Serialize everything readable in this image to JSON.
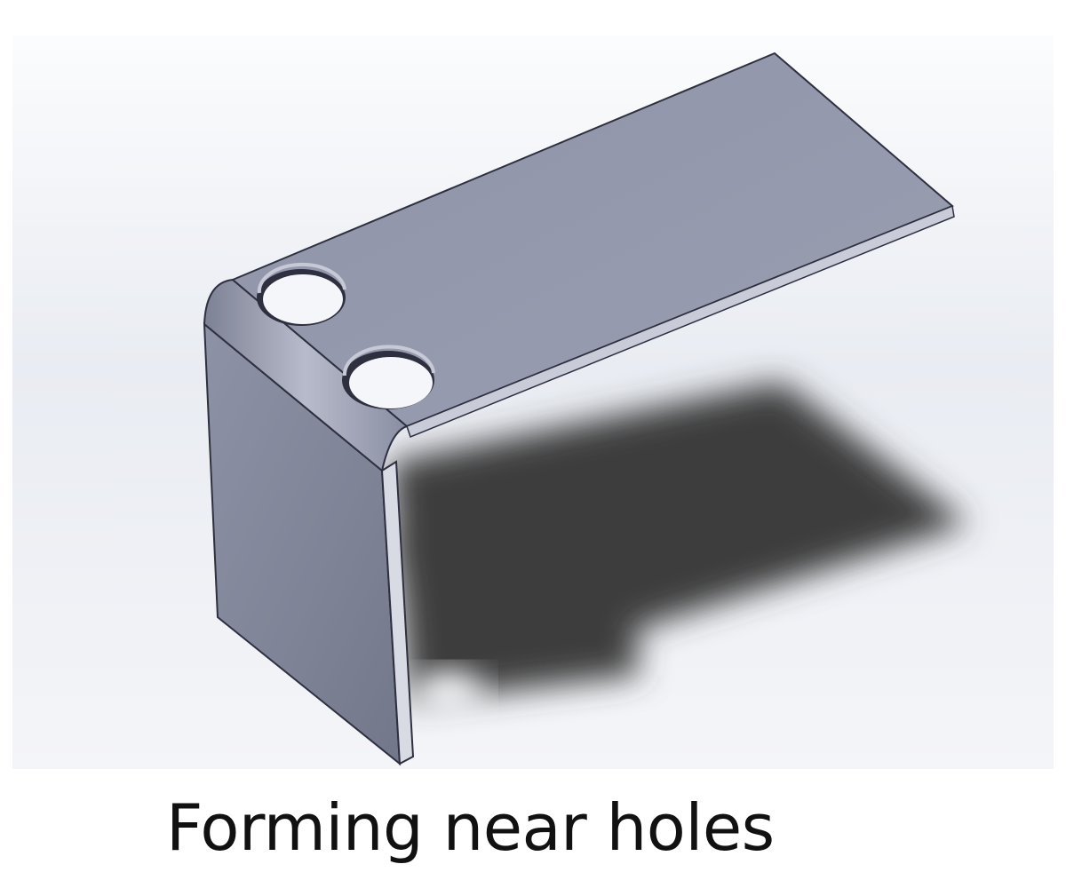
{
  "caption": "Forming near holes",
  "model": {
    "part": "sheet-metal-l-bracket",
    "hole_count": 2,
    "colors": {
      "part_top": "#9498ab",
      "part_side": "#7c8093",
      "edge": "#2e3040",
      "viewport_bg": "#eef0f5",
      "shadow": "#3e3e3e"
    }
  }
}
